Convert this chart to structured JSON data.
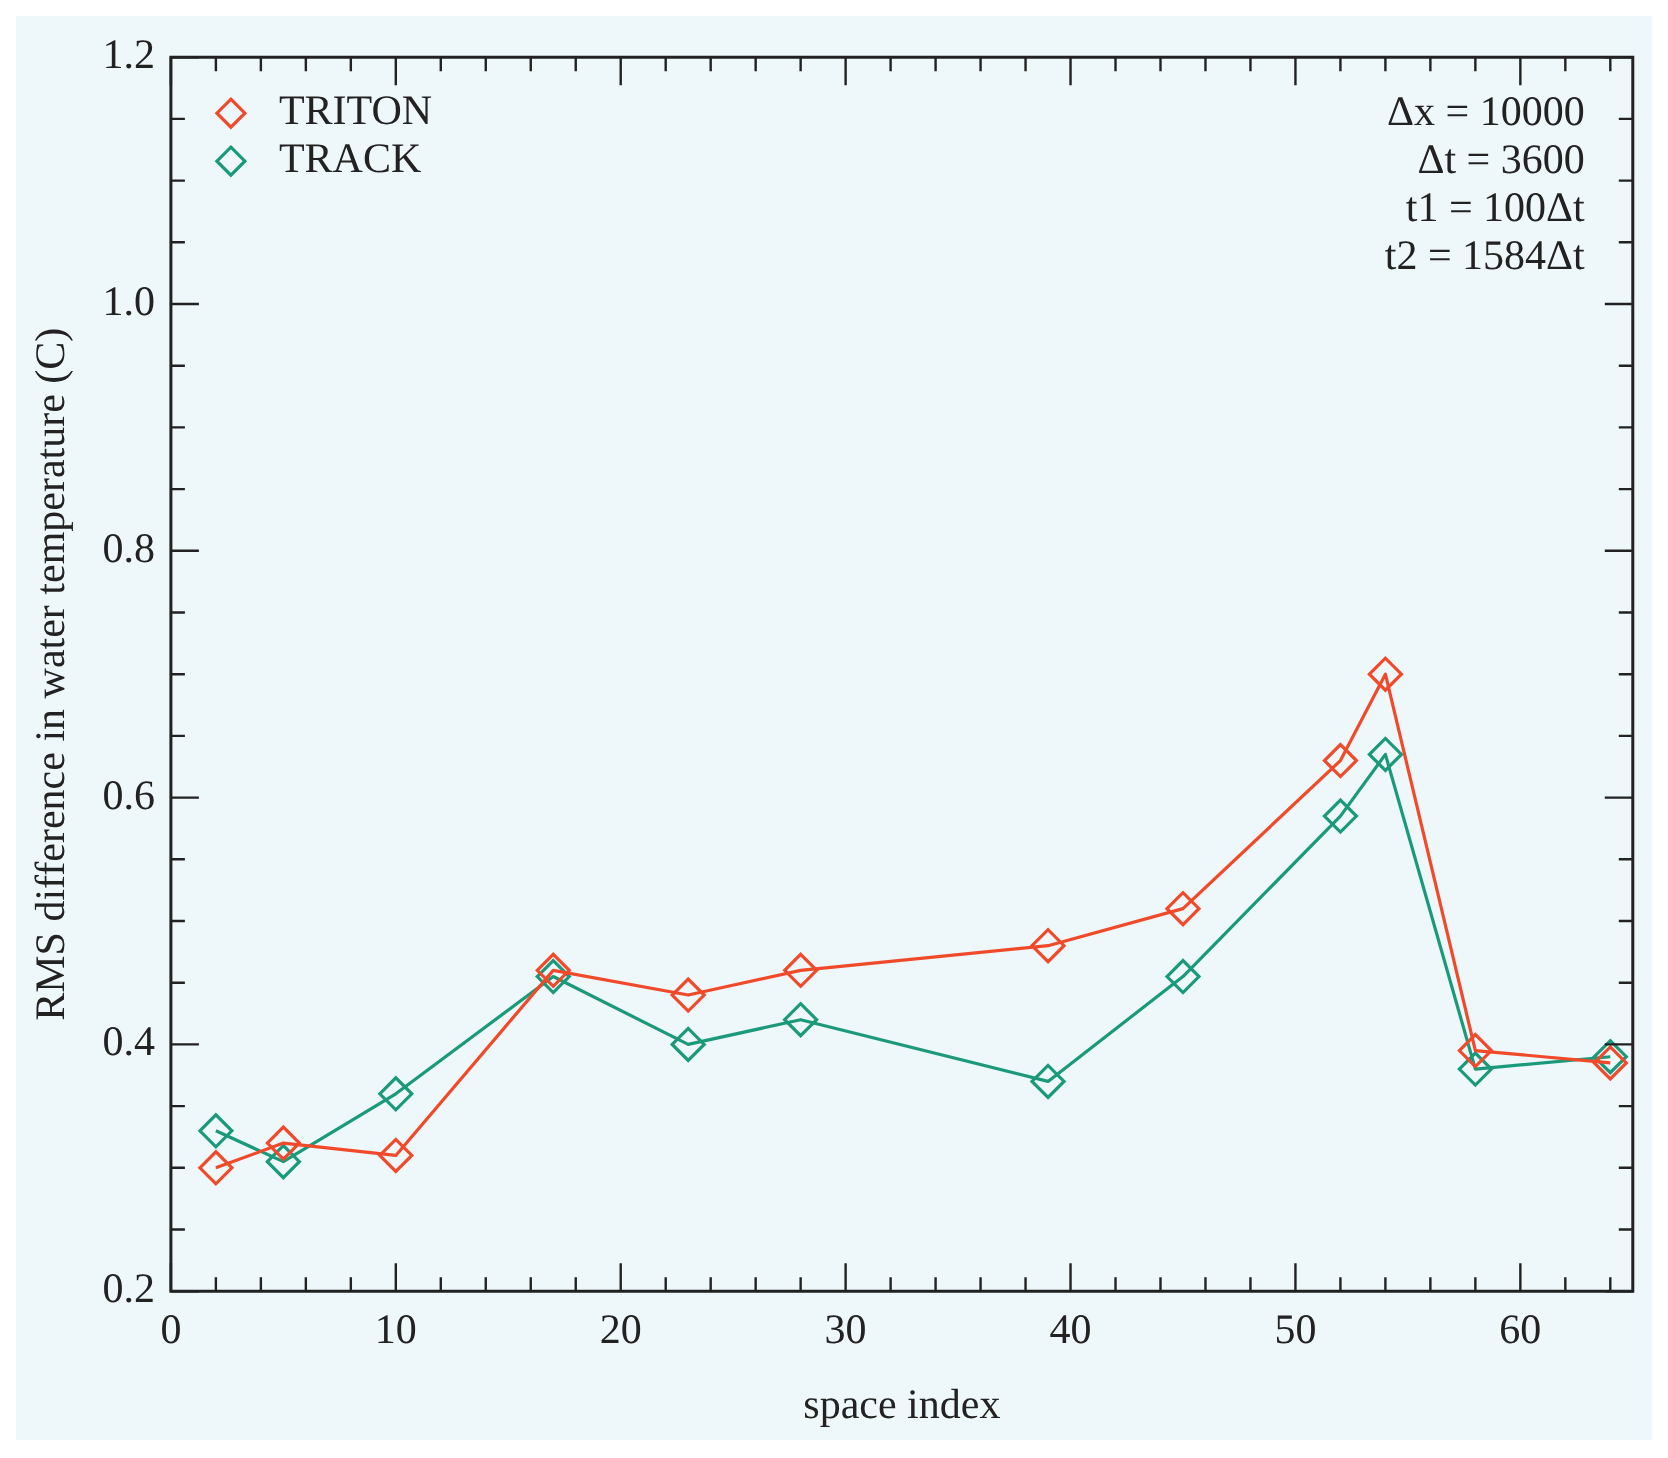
{
  "chart_data": {
    "type": "line",
    "xlabel": "space index",
    "ylabel": "RMS difference in water temperature (C)",
    "x": [
      2,
      5,
      10,
      17,
      23,
      28,
      39,
      45,
      52,
      54,
      58,
      64
    ],
    "series": [
      {
        "name": "TRITON",
        "color": "#f04a2a",
        "values": [
          0.3,
          0.32,
          0.31,
          0.46,
          0.44,
          0.46,
          0.48,
          0.51,
          0.63,
          0.7,
          0.395,
          0.385
        ]
      },
      {
        "name": "TRACK",
        "color": "#1a9a7a",
        "values": [
          0.33,
          0.305,
          0.36,
          0.455,
          0.4,
          0.42,
          0.37,
          0.455,
          0.585,
          0.635,
          0.38,
          0.39
        ]
      }
    ],
    "xlim": [
      0,
      65
    ],
    "xticks": [
      0,
      {
        "value": 2,
        "label": null
      },
      {
        "value": 4,
        "label": null
      },
      {
        "value": 6,
        "label": null
      },
      {
        "value": 8,
        "label": null
      },
      10,
      {
        "value": 12,
        "label": null
      },
      {
        "value": 14,
        "label": null
      },
      {
        "value": 16,
        "label": null
      },
      {
        "value": 18,
        "label": null
      },
      20,
      {
        "value": 22,
        "label": null
      },
      {
        "value": 24,
        "label": null
      },
      {
        "value": 26,
        "label": null
      },
      {
        "value": 28,
        "label": null
      },
      30,
      {
        "value": 32,
        "label": null
      },
      {
        "value": 34,
        "label": null
      },
      {
        "value": 36,
        "label": null
      },
      {
        "value": 38,
        "label": null
      },
      40,
      {
        "value": 42,
        "label": null
      },
      {
        "value": 44,
        "label": null
      },
      {
        "value": 46,
        "label": null
      },
      {
        "value": 48,
        "label": null
      },
      50,
      {
        "value": 52,
        "label": null
      },
      {
        "value": 54,
        "label": null
      },
      {
        "value": 56,
        "label": null
      },
      {
        "value": 58,
        "label": null
      },
      60,
      {
        "value": 62,
        "label": null
      },
      {
        "value": 64,
        "label": null
      }
    ],
    "ylim": [
      0.2,
      1.2
    ],
    "yticks": [
      {
        "value": 0.2,
        "label": "0.2"
      },
      {
        "value": 0.25,
        "label": null
      },
      {
        "value": 0.3,
        "label": null
      },
      {
        "value": 0.35,
        "label": null
      },
      {
        "value": 0.4,
        "label": "0.4"
      },
      {
        "value": 0.45,
        "label": null
      },
      {
        "value": 0.5,
        "label": null
      },
      {
        "value": 0.55,
        "label": null
      },
      {
        "value": 0.6,
        "label": "0.6"
      },
      {
        "value": 0.65,
        "label": null
      },
      {
        "value": 0.7,
        "label": null
      },
      {
        "value": 0.75,
        "label": null
      },
      {
        "value": 0.8,
        "label": "0.8"
      },
      {
        "value": 0.85,
        "label": null
      },
      {
        "value": 0.9,
        "label": null
      },
      {
        "value": 0.95,
        "label": null
      },
      {
        "value": 1.0,
        "label": "1.0"
      },
      {
        "value": 1.05,
        "label": null
      },
      {
        "value": 1.1,
        "label": null
      },
      {
        "value": 1.15,
        "label": null
      },
      {
        "value": 1.2,
        "label": "1.2"
      }
    ],
    "annotations": [
      "Δx = 10000",
      "Δt = 3600",
      "t1 = 100Δt",
      "t2 = 1584Δt"
    ],
    "legend": "top left",
    "marker": "diamond",
    "line_style": "solid",
    "grid": false
  }
}
